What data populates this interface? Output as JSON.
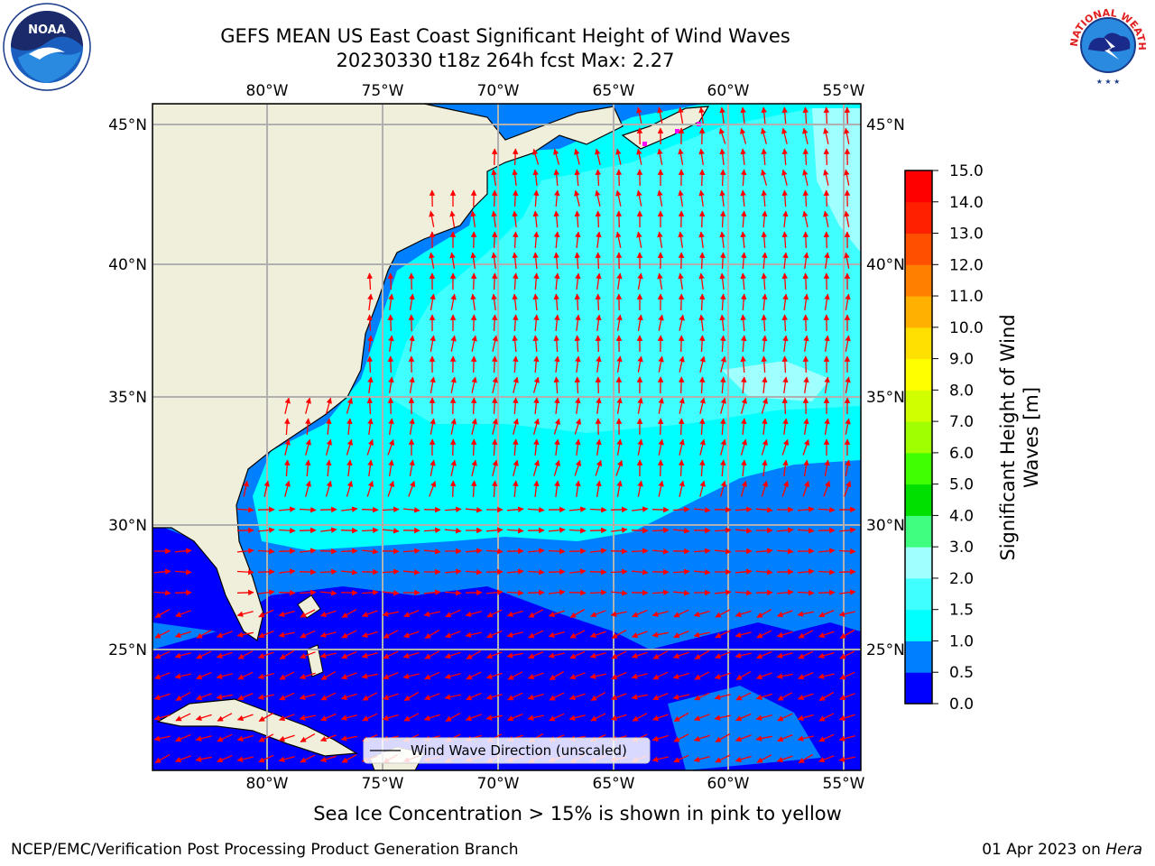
{
  "title_line1": "GEFS MEAN US East Coast Significant Height of Wind Waves",
  "title_line2": "20230330 t18z 264h fcst   Max: 2.27",
  "subtitle": "Sea Ice Concentration > 15% is shown in pink to yellow",
  "footer_left": "NCEP/EMC/Verification Post Processing Product Generation Branch",
  "footer_date": "01 Apr 2023 on",
  "footer_host": "Hera",
  "legend_label": "Wind Wave Direction (unscaled)",
  "colorbar_label_line1": "Significant Height of Wind",
  "colorbar_label_line2": "Waves [m]",
  "lon_ticks": [
    "80°W",
    "75°W",
    "70°W",
    "65°W",
    "60°W",
    "55°W"
  ],
  "lat_ticks": [
    "45°N",
    "40°N",
    "35°N",
    "30°N",
    "25°N"
  ],
  "colorbar": {
    "ticks": [
      "0.0",
      "0.5",
      "1.0",
      "1.5",
      "2.0",
      "3.0",
      "4.0",
      "5.0",
      "6.0",
      "7.0",
      "8.0",
      "9.0",
      "10.0",
      "11.0",
      "12.0",
      "13.0",
      "14.0",
      "15.0"
    ],
    "colors": [
      "#0000ff",
      "#0080ff",
      "#00ffff",
      "#40ffff",
      "#a0ffff",
      "#40ff80",
      "#00e000",
      "#40ff00",
      "#a0ff00",
      "#d0ff00",
      "#ffff00",
      "#ffe000",
      "#ffb000",
      "#ff8000",
      "#ff5000",
      "#ff2000",
      "#ff0000"
    ]
  },
  "logos": {
    "left": "NOAA",
    "right": "NATIONAL WEATHER SERVICE"
  }
}
